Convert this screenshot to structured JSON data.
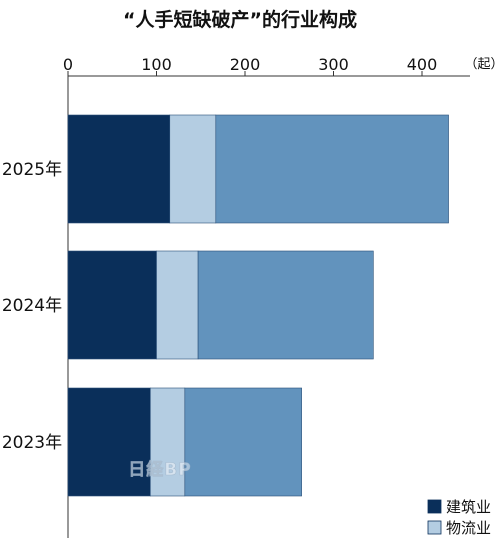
{
  "chart_data": {
    "type": "bar",
    "orientation": "horizontal",
    "stacked": true,
    "title": "“人手短缺破产”的行业构成",
    "unit": "（起）",
    "categories": [
      "2025年",
      "2024年",
      "2023年"
    ],
    "xlim": [
      0,
      430
    ],
    "xticks": [
      0,
      100,
      200,
      300,
      400
    ],
    "series": [
      {
        "name": "建筑业",
        "color": "#0a2f5a",
        "values": [
          115,
          100,
          93
        ]
      },
      {
        "name": "物流业",
        "color": "#b4cde2",
        "values": [
          52,
          47,
          39
        ]
      },
      {
        "color": "#6293bd",
        "values": [
          263,
          198,
          132
        ]
      }
    ],
    "legend": {
      "position": "bottom-right",
      "entries": [
        "建筑业",
        "物流业"
      ]
    },
    "watermark": "日経BP"
  }
}
